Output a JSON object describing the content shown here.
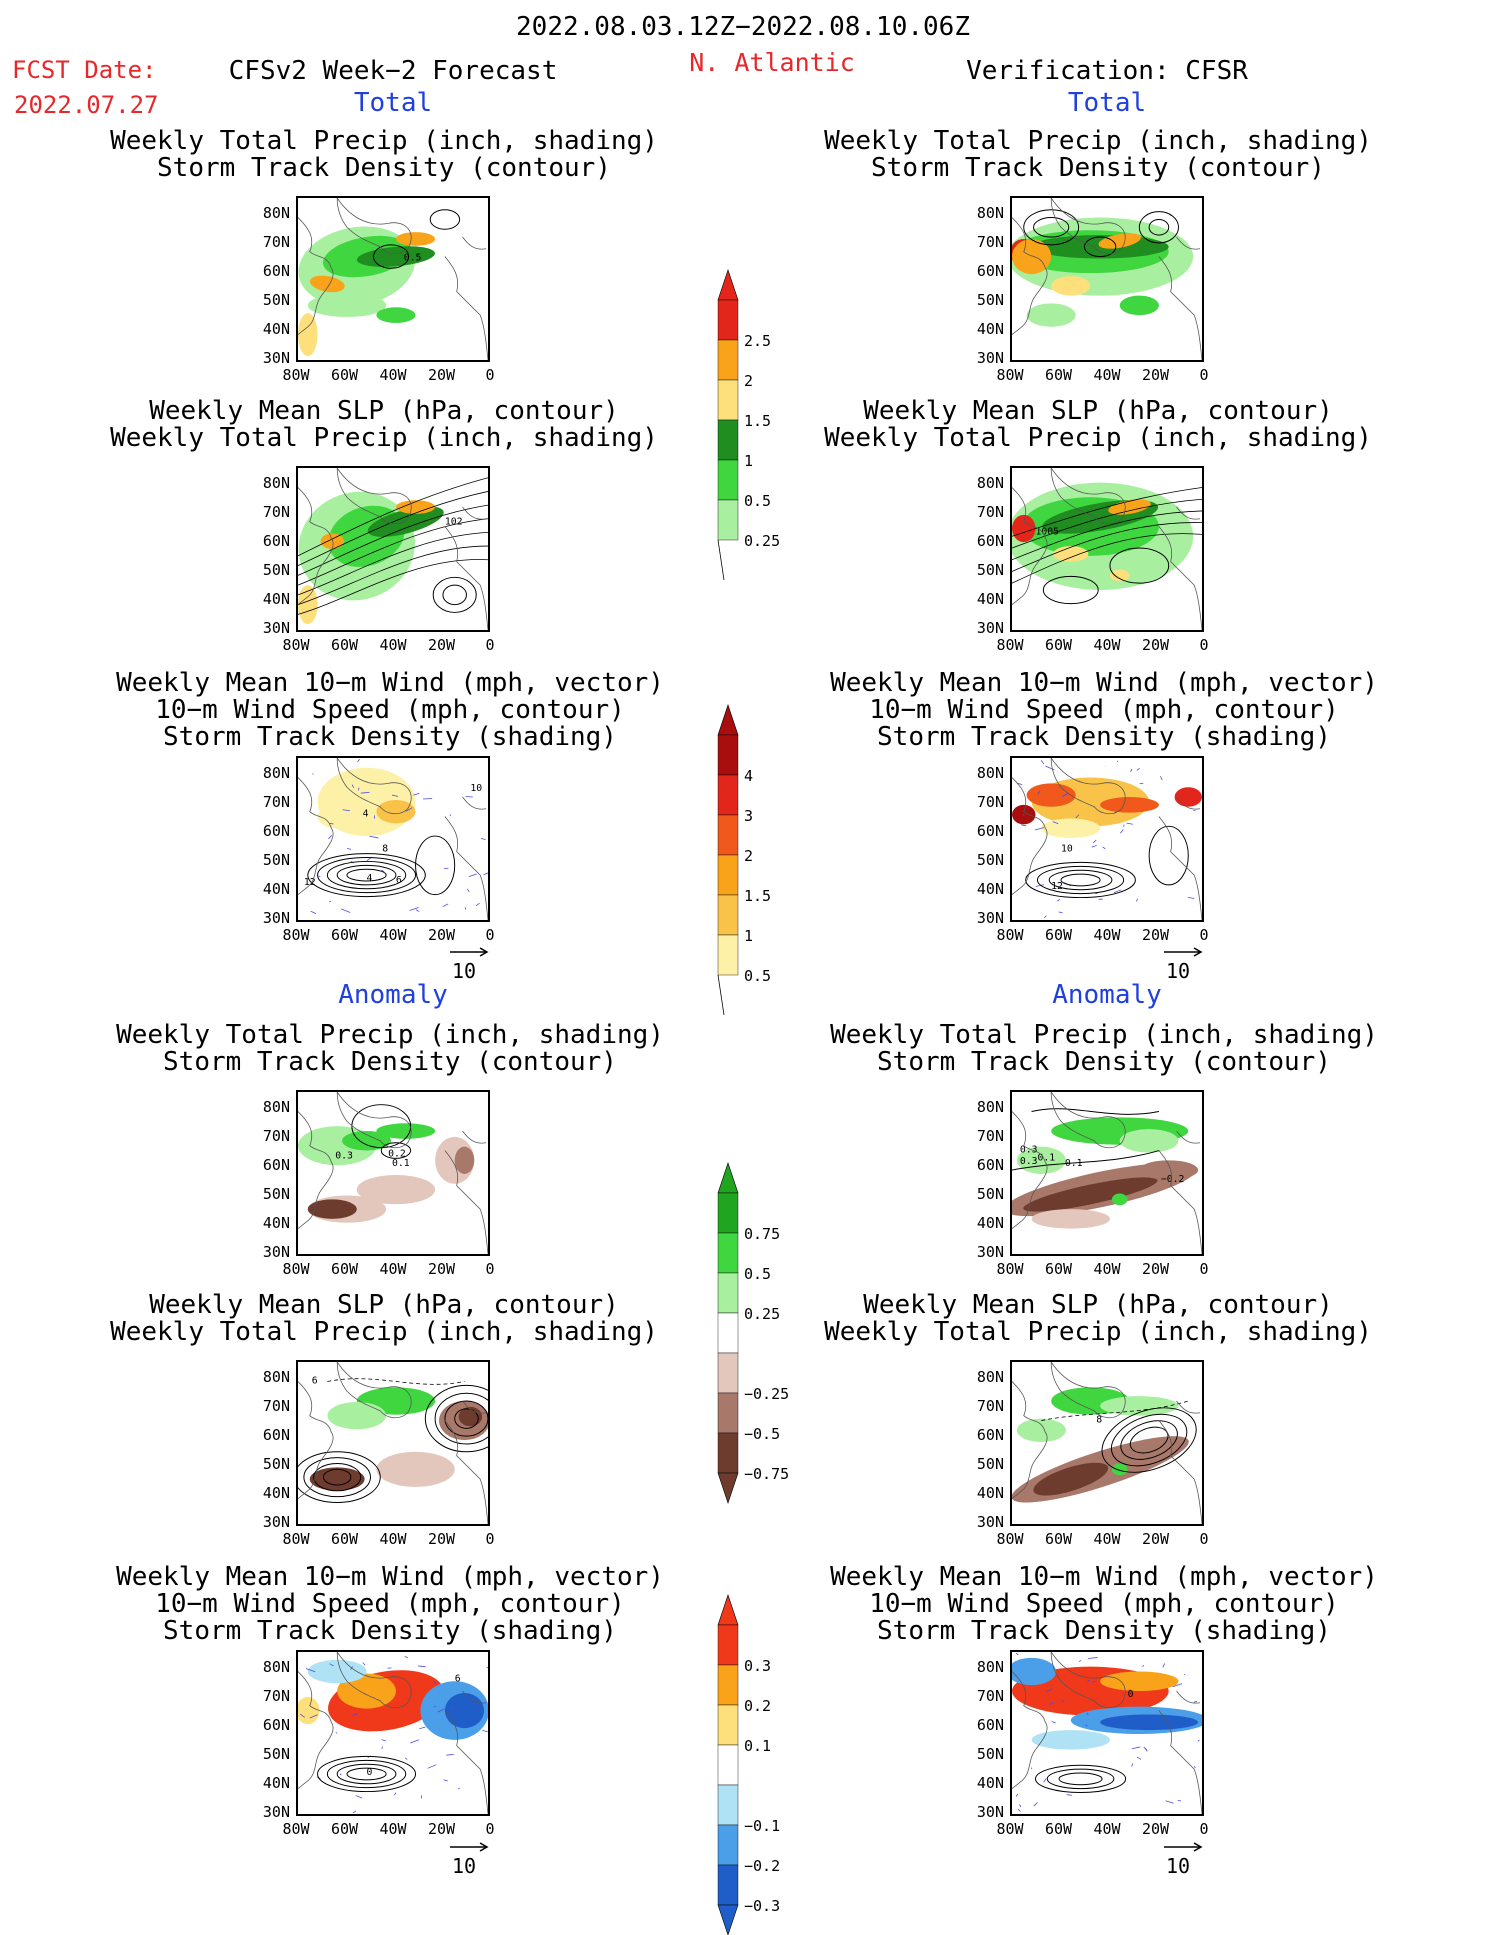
{
  "header": {
    "period": "2022.08.03.12Z−2022.08.10.06Z",
    "fcst_label": "FCST Date:",
    "fcst_date": "2022.07.27",
    "model": "CFSv2 Week−2 Forecast",
    "region": "N. Atlantic",
    "verification": "Verification: CFSR"
  },
  "sections": {
    "total": "Total",
    "anomaly": "Anomaly"
  },
  "titles": {
    "precip_storm": [
      "Weekly Total Precip (inch, shading)",
      "Storm Track Density (contour)"
    ],
    "slp_precip": [
      "Weekly Mean SLP (hPa, contour)",
      "Weekly Total Precip (inch, shading)"
    ],
    "wind_storm": [
      "Weekly Mean 10−m Wind (mph, vector)",
      "10−m Wind Speed (mph, contour)",
      "Storm Track Density (shading)"
    ]
  },
  "axes": {
    "lat_labels": [
      "80N",
      "70N",
      "60N",
      "50N",
      "40N",
      "30N"
    ],
    "lon_labels": [
      "80W",
      "60W",
      "40W",
      "20W",
      "0"
    ]
  },
  "vector_ref": "10",
  "contour_labels": {
    "f_total_precip": "0.5",
    "f_total_slp": "102",
    "o_total_slp": "1005",
    "f_total_wind": [
      "10",
      "4",
      "8",
      "12",
      "4",
      "6"
    ],
    "o_total_wind": [
      "10",
      "12"
    ],
    "f_anom_precip": [
      "0.3",
      "0.2",
      "0.1"
    ],
    "o_anom_precip": [
      "0.3",
      "0.1",
      "0.3",
      "0.1",
      "−0.2"
    ],
    "f_anom_slp": "6",
    "o_anom_slp": "8",
    "f_anom_wind": [
      "6",
      "0"
    ],
    "o_anom_wind": "0"
  },
  "colorbars": {
    "precip_total": {
      "labels": [
        "2.5",
        "2",
        "1.5",
        "1",
        "0.5",
        "0.25"
      ],
      "colors": [
        "#e3261b",
        "#f9a31a",
        "#fde07c",
        "#1f8d1f",
        "#3fd63f",
        "#a8efa0"
      ]
    },
    "storm_total": {
      "labels": [
        "4",
        "3",
        "2",
        "1.5",
        "1",
        "0.5"
      ],
      "colors": [
        "#a80e0e",
        "#e3261b",
        "#f0591b",
        "#f9a31a",
        "#f9c349",
        "#fdf1a8"
      ]
    },
    "precip_anom": {
      "labels": [
        "0.75",
        "0.5",
        "0.25",
        "−0.25",
        "−0.5",
        "−0.75"
      ],
      "colors": [
        "#1fa51f",
        "#3fd63f",
        "#a8efa0",
        "#ffffff",
        "#e3c6bc",
        "#a8796a",
        "#6e3c2e"
      ]
    },
    "storm_anom": {
      "labels": [
        "0.3",
        "0.2",
        "0.1",
        "−0.1",
        "−0.2",
        "−0.3"
      ],
      "colors": [
        "#f0391b",
        "#f9a31a",
        "#fde07c",
        "#ffffff",
        "#b0e2f5",
        "#4a9fe8",
        "#1f5ec9"
      ]
    }
  }
}
